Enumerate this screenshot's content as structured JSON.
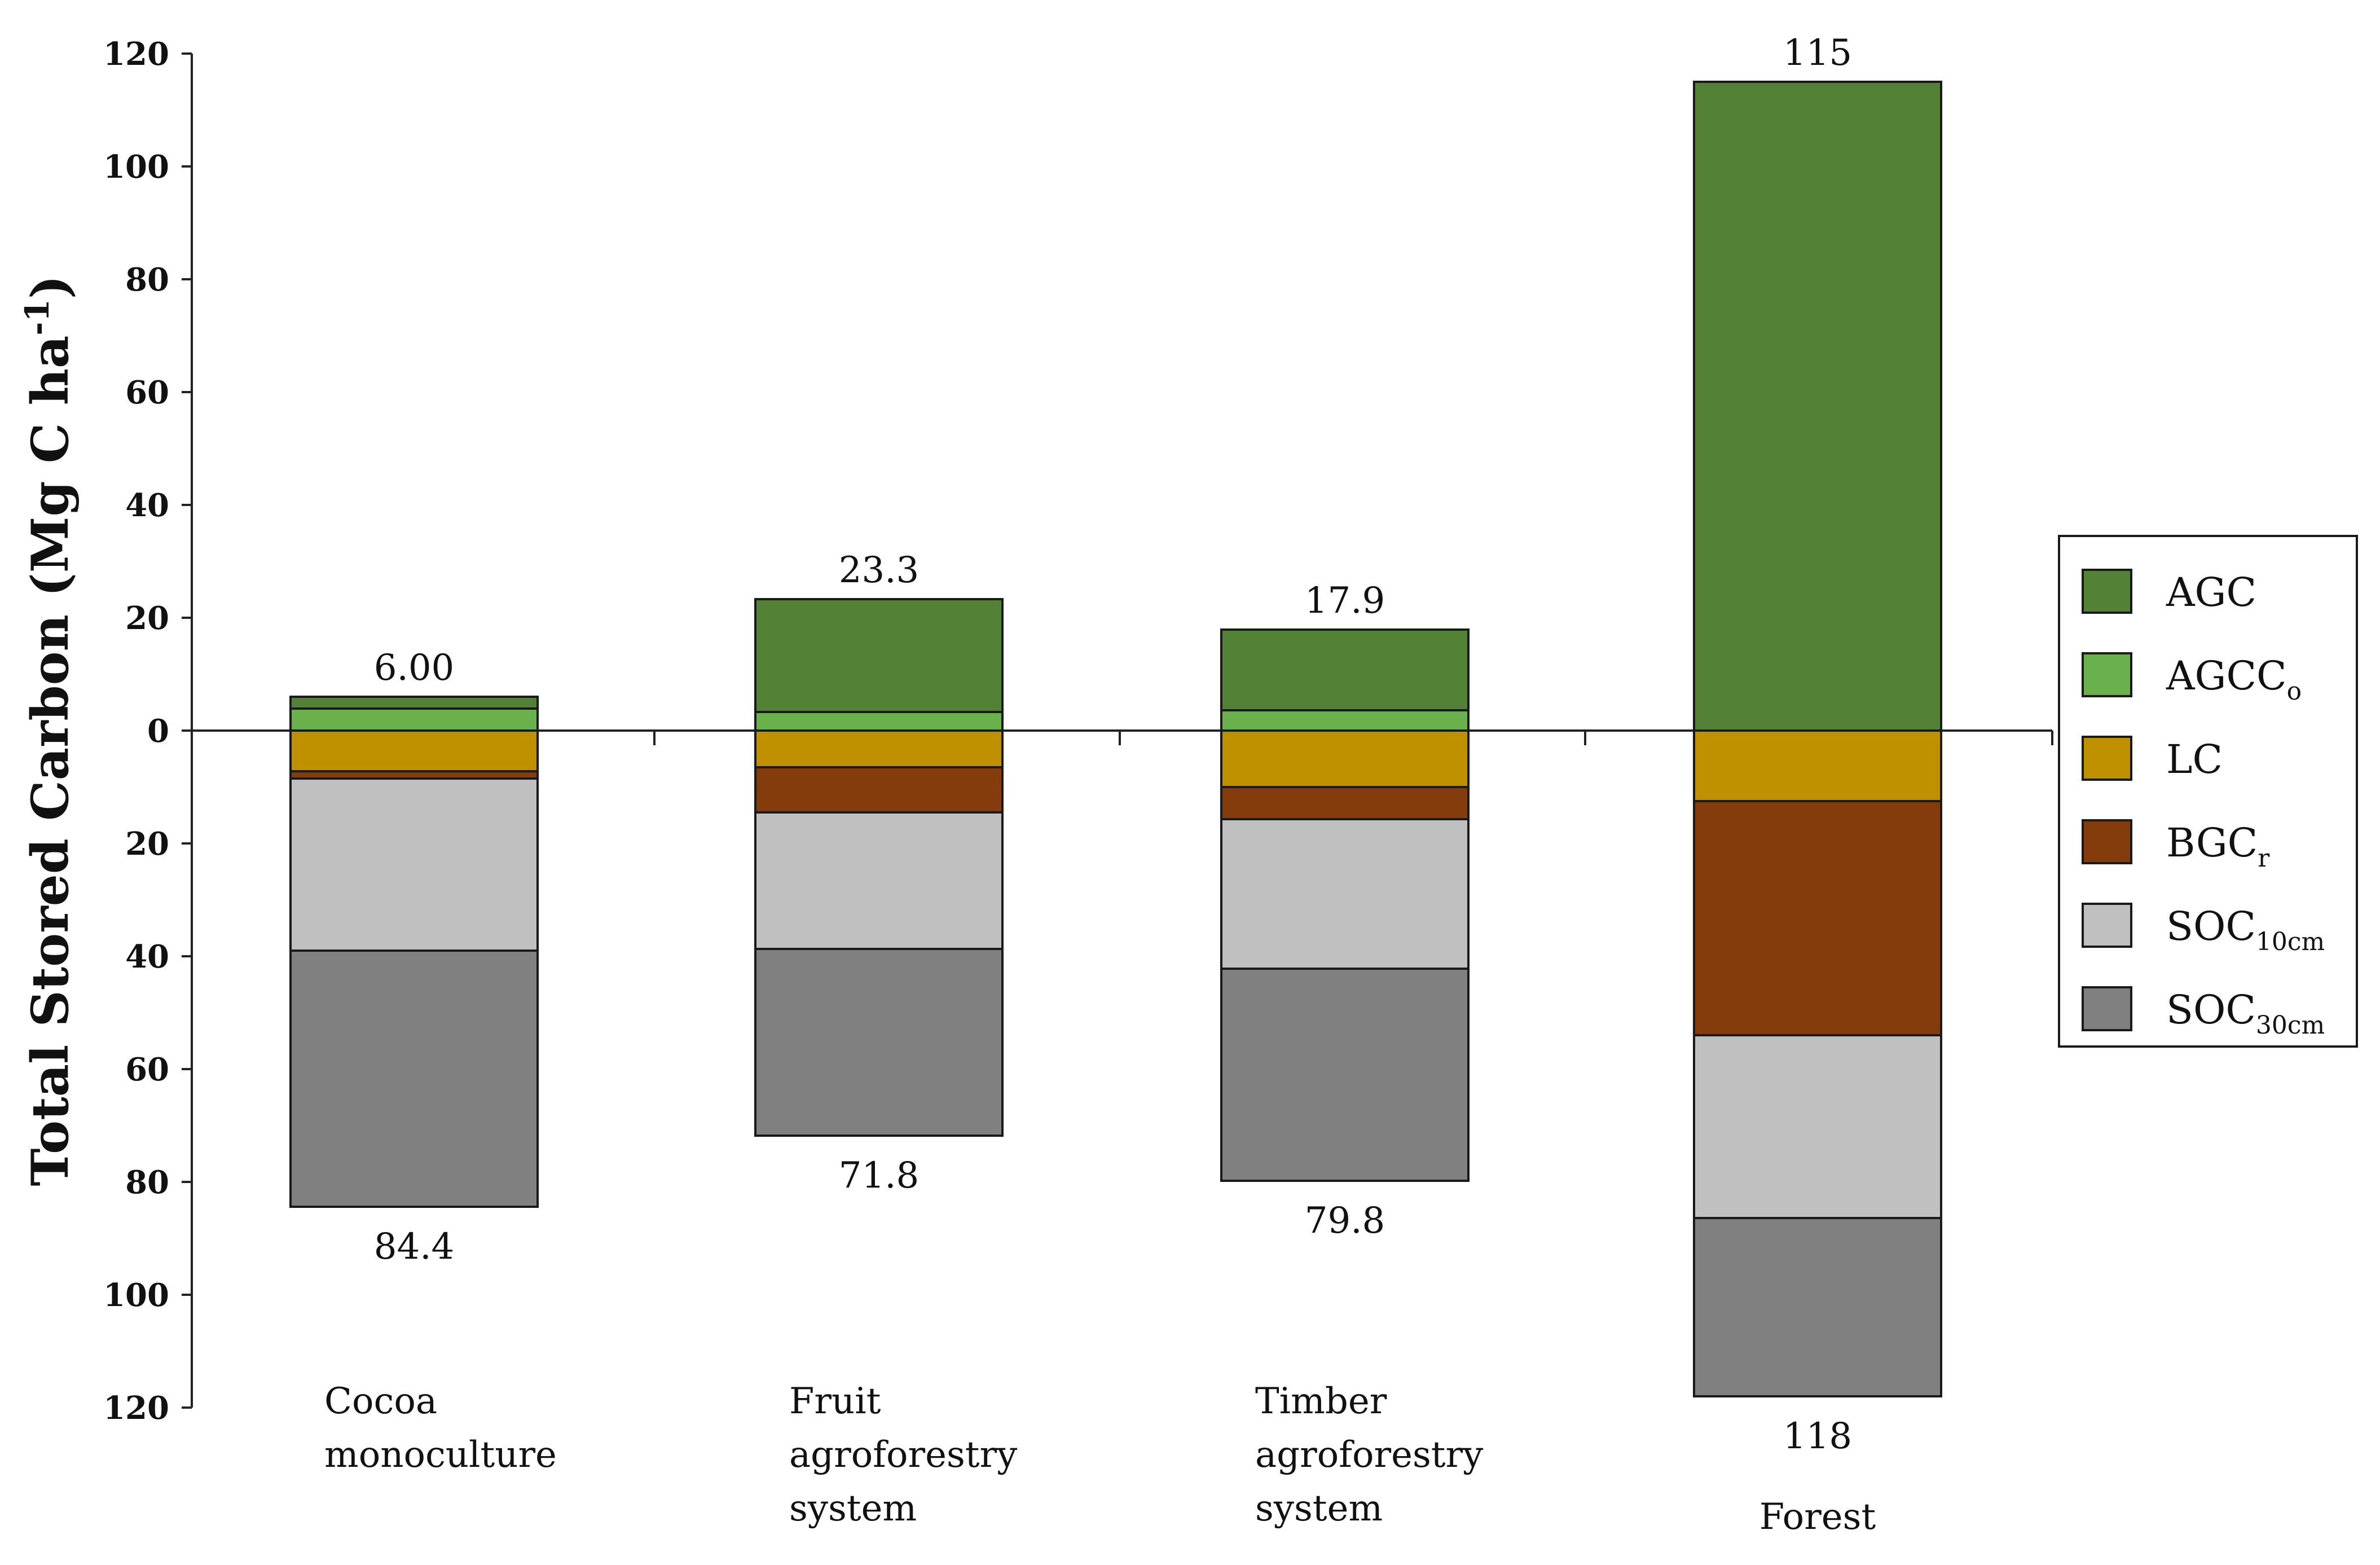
{
  "chart_data": {
    "type": "bar",
    "stacking": "diverging",
    "ylabel_main": "Total Stored Carbon (Mg C ha",
    "ylabel_sup": "-1",
    "ylabel_close": ")",
    "y_ticks": [
      {
        "value": 120,
        "label": "120"
      },
      {
        "value": 100,
        "label": "100"
      },
      {
        "value": 80,
        "label": "80"
      },
      {
        "value": 60,
        "label": "60"
      },
      {
        "value": 40,
        "label": "40"
      },
      {
        "value": 20,
        "label": "20"
      },
      {
        "value": 0,
        "label": "0"
      },
      {
        "value": -20,
        "label": "20"
      },
      {
        "value": -40,
        "label": "40"
      },
      {
        "value": -60,
        "label": "60"
      },
      {
        "value": -80,
        "label": "80"
      },
      {
        "value": -100,
        "label": "100"
      },
      {
        "value": -120,
        "label": "120"
      }
    ],
    "ylim": [
      -120,
      120
    ],
    "legend_position": "right",
    "legend": [
      {
        "key": "AGC",
        "label": "AGC",
        "sub": "",
        "color": "#538135"
      },
      {
        "key": "AGCCo",
        "label": "AGCC",
        "sub": "o",
        "color": "#6ab04c"
      },
      {
        "key": "LC",
        "label": "LC",
        "sub": "",
        "color": "#bf9000"
      },
      {
        "key": "BGCr",
        "label": "BGC",
        "sub": "r",
        "color": "#843c0c"
      },
      {
        "key": "SOC10",
        "label": "SOC",
        "sub": "10cm",
        "color": "#c0c0c0"
      },
      {
        "key": "SOC30",
        "label": "SOC",
        "sub": "30cm",
        "color": "#808080"
      }
    ],
    "categories": [
      {
        "lines": [
          "Cocoa",
          "monoculture"
        ],
        "above": [
          {
            "key": "AGCCo",
            "value": 3.9
          },
          {
            "key": "AGC",
            "value": 2.1
          }
        ],
        "below": [
          {
            "key": "LC",
            "value": 7.2
          },
          {
            "key": "BGCr",
            "value": 1.3
          },
          {
            "key": "SOC10",
            "value": 30.5
          },
          {
            "key": "SOC30",
            "value": 45.4
          }
        ],
        "top_label": "6.00",
        "bottom_label": "84.4"
      },
      {
        "lines": [
          "Fruit",
          "agroforestry",
          "system"
        ],
        "above": [
          {
            "key": "AGCCo",
            "value": 3.3
          },
          {
            "key": "AGC",
            "value": 20.0
          }
        ],
        "below": [
          {
            "key": "LC",
            "value": 6.5
          },
          {
            "key": "BGCr",
            "value": 8.0
          },
          {
            "key": "SOC10",
            "value": 24.2
          },
          {
            "key": "SOC30",
            "value": 33.1
          }
        ],
        "top_label": "23.3",
        "bottom_label": "71.8"
      },
      {
        "lines": [
          "Timber",
          "agroforestry",
          "system"
        ],
        "above": [
          {
            "key": "AGCCo",
            "value": 3.6
          },
          {
            "key": "AGC",
            "value": 14.3
          }
        ],
        "below": [
          {
            "key": "LC",
            "value": 10.0
          },
          {
            "key": "BGCr",
            "value": 5.7
          },
          {
            "key": "SOC10",
            "value": 26.5
          },
          {
            "key": "SOC30",
            "value": 37.6
          }
        ],
        "top_label": "17.9",
        "bottom_label": "79.8"
      },
      {
        "lines": [
          "Forest"
        ],
        "above": [
          {
            "key": "AGC",
            "value": 115.0
          }
        ],
        "below": [
          {
            "key": "LC",
            "value": 12.5
          },
          {
            "key": "BGCr",
            "value": 41.5
          },
          {
            "key": "SOC10",
            "value": 32.4
          },
          {
            "key": "SOC30",
            "value": 31.6
          }
        ],
        "top_label": "115",
        "bottom_label": "118"
      }
    ]
  }
}
